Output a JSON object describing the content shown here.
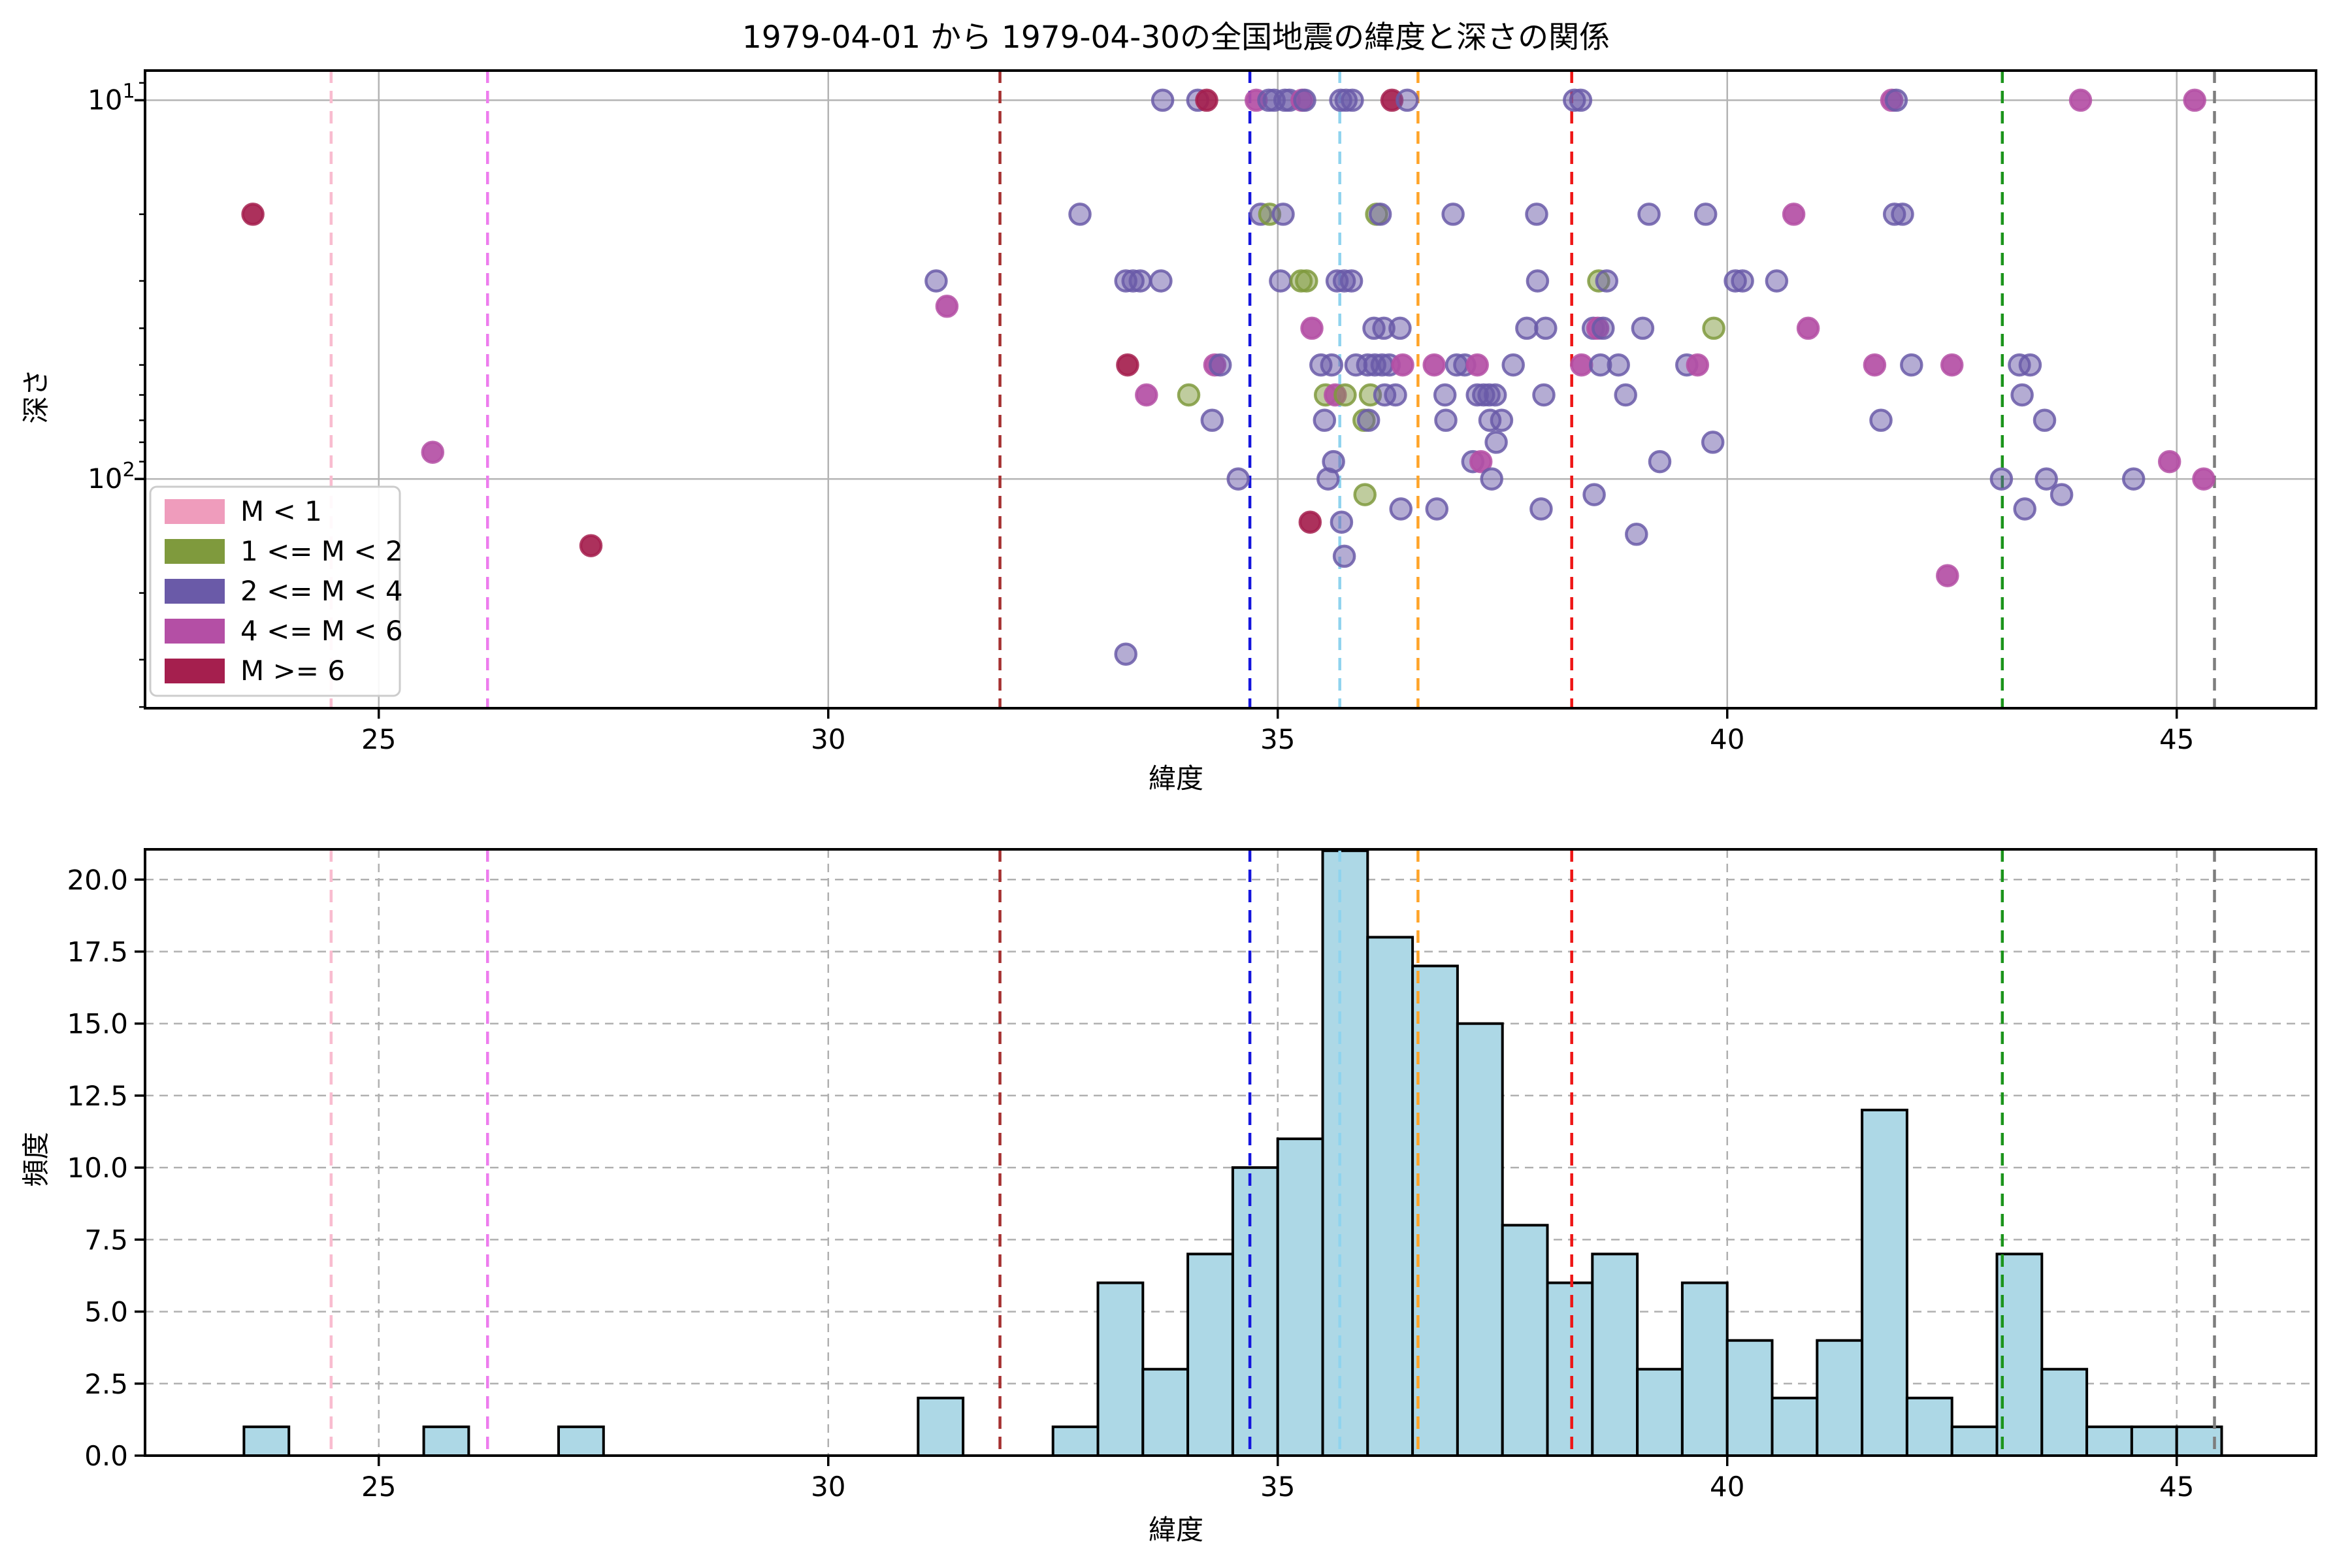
{
  "title": "1979-04-01 から 1979-04-30の全国地震の緯度と深さの関係",
  "chart_data": [
    {
      "type": "scatter",
      "title": "1979-04-01 から 1979-04-30の全国地震の緯度と深さの関係",
      "xlabel": "緯度",
      "ylabel": "深さ",
      "x_axis": {
        "ticks": [
          25,
          30,
          35,
          40,
          45
        ],
        "lim": [
          22.4,
          46.55
        ]
      },
      "y_axis": {
        "scale": "log",
        "inverted": true,
        "lim_depth_km": [
          8.35,
          403
        ],
        "tick_labels": [
          "10^1",
          "10^2"
        ],
        "tick_values": [
          10,
          100
        ],
        "minor_ticks": [
          9,
          20,
          30,
          40,
          50,
          60,
          70,
          80,
          90,
          200,
          300,
          400
        ]
      },
      "grid": "solid-major",
      "legend": {
        "position": "lower-left",
        "entries": [
          {
            "label": "M < 1",
            "color": "#ef9cbc"
          },
          {
            "label": "1 <= M < 2",
            "color": "#7f9a3d"
          },
          {
            "label": "2 <= M < 4",
            "color": "#6a5aa8"
          },
          {
            "label": "4 <= M < 6",
            "color": "#b44fa5"
          },
          {
            "label": "M >= 6",
            "color": "#a51f4e"
          }
        ]
      },
      "reference_lines_lat": [
        {
          "lat": 24.47,
          "color": "#f9bccf"
        },
        {
          "lat": 26.21,
          "color": "#ee7dee"
        },
        {
          "lat": 31.91,
          "color": "#a53030"
        },
        {
          "lat": 34.69,
          "color": "#1515dd"
        },
        {
          "lat": 35.69,
          "color": "#8fd3ee"
        },
        {
          "lat": 36.56,
          "color": "#ffa428"
        },
        {
          "lat": 38.27,
          "color": "#ee1515"
        },
        {
          "lat": 43.06,
          "color": "#1b941b"
        },
        {
          "lat": 45.42,
          "color": "#7d7d7d"
        }
      ],
      "point_classes": [
        "M < 1",
        "1 <= M < 2",
        "2 <= M < 4",
        "4 <= M < 6",
        "M >= 6"
      ],
      "points_lat_depth_class": [
        [
          33.72,
          10,
          2
        ],
        [
          34.11,
          10,
          2
        ],
        [
          34.21,
          10,
          4
        ],
        [
          34.76,
          10,
          3
        ],
        [
          34.9,
          10,
          2
        ],
        [
          34.96,
          10,
          2
        ],
        [
          35.08,
          10,
          2
        ],
        [
          35.13,
          10,
          2
        ],
        [
          35.27,
          10,
          3
        ],
        [
          35.3,
          10,
          2
        ],
        [
          35.7,
          10,
          2
        ],
        [
          35.76,
          10,
          2
        ],
        [
          35.83,
          10,
          2
        ],
        [
          36.27,
          10,
          4
        ],
        [
          36.44,
          10,
          2
        ],
        [
          38.3,
          10,
          2
        ],
        [
          38.37,
          10,
          2
        ],
        [
          41.83,
          10,
          3
        ],
        [
          41.88,
          10,
          2
        ],
        [
          43.93,
          10,
          3
        ],
        [
          45.2,
          10,
          3
        ],
        [
          23.6,
          20,
          4
        ],
        [
          32.8,
          20,
          2
        ],
        [
          34.81,
          20,
          2
        ],
        [
          34.91,
          20,
          1
        ],
        [
          35.06,
          20,
          2
        ],
        [
          36.1,
          20,
          1
        ],
        [
          36.14,
          20,
          2
        ],
        [
          36.95,
          20,
          2
        ],
        [
          37.88,
          20,
          2
        ],
        [
          39.13,
          20,
          2
        ],
        [
          39.76,
          20,
          2
        ],
        [
          40.74,
          20,
          3
        ],
        [
          41.86,
          20,
          2
        ],
        [
          41.95,
          20,
          2
        ],
        [
          31.2,
          30,
          2
        ],
        [
          33.31,
          30,
          2
        ],
        [
          33.39,
          30,
          2
        ],
        [
          33.47,
          30,
          2
        ],
        [
          33.7,
          30,
          2
        ],
        [
          35.03,
          30,
          2
        ],
        [
          35.26,
          30,
          1
        ],
        [
          35.32,
          30,
          1
        ],
        [
          35.66,
          30,
          2
        ],
        [
          35.74,
          30,
          2
        ],
        [
          35.82,
          30,
          2
        ],
        [
          37.89,
          30,
          2
        ],
        [
          38.57,
          30,
          1
        ],
        [
          38.66,
          30,
          2
        ],
        [
          40.09,
          30,
          2
        ],
        [
          40.17,
          30,
          2
        ],
        [
          40.55,
          30,
          2
        ],
        [
          31.32,
          35,
          3
        ],
        [
          35.38,
          40,
          3
        ],
        [
          36.07,
          40,
          2
        ],
        [
          36.18,
          40,
          2
        ],
        [
          36.36,
          40,
          2
        ],
        [
          37.77,
          40,
          2
        ],
        [
          37.98,
          40,
          2
        ],
        [
          38.51,
          40,
          2
        ],
        [
          38.56,
          40,
          3
        ],
        [
          38.62,
          40,
          2
        ],
        [
          39.06,
          40,
          2
        ],
        [
          39.85,
          40,
          1
        ],
        [
          40.9,
          40,
          3
        ],
        [
          33.33,
          50,
          4
        ],
        [
          34.3,
          50,
          3
        ],
        [
          34.36,
          50,
          2
        ],
        [
          35.48,
          50,
          2
        ],
        [
          35.6,
          50,
          2
        ],
        [
          35.87,
          50,
          2
        ],
        [
          36.0,
          50,
          2
        ],
        [
          36.08,
          50,
          2
        ],
        [
          36.16,
          50,
          2
        ],
        [
          36.24,
          50,
          2
        ],
        [
          36.39,
          50,
          3
        ],
        [
          36.74,
          50,
          3
        ],
        [
          36.99,
          50,
          2
        ],
        [
          37.08,
          50,
          2
        ],
        [
          37.22,
          50,
          3
        ],
        [
          37.62,
          50,
          2
        ],
        [
          38.38,
          50,
          3
        ],
        [
          38.59,
          50,
          2
        ],
        [
          38.79,
          50,
          2
        ],
        [
          39.55,
          50,
          2
        ],
        [
          39.67,
          50,
          3
        ],
        [
          41.64,
          50,
          3
        ],
        [
          42.05,
          50,
          2
        ],
        [
          42.5,
          50,
          3
        ],
        [
          43.25,
          50,
          2
        ],
        [
          43.37,
          50,
          2
        ],
        [
          33.54,
          60,
          3
        ],
        [
          34.01,
          60,
          1
        ],
        [
          35.53,
          60,
          1
        ],
        [
          35.64,
          60,
          3
        ],
        [
          35.75,
          60,
          1
        ],
        [
          36.03,
          60,
          1
        ],
        [
          36.19,
          60,
          2
        ],
        [
          36.31,
          60,
          2
        ],
        [
          36.86,
          60,
          2
        ],
        [
          37.22,
          60,
          2
        ],
        [
          37.29,
          60,
          2
        ],
        [
          37.35,
          60,
          2
        ],
        [
          37.42,
          60,
          2
        ],
        [
          37.96,
          60,
          2
        ],
        [
          38.87,
          60,
          2
        ],
        [
          43.28,
          60,
          2
        ],
        [
          34.27,
          70,
          2
        ],
        [
          35.52,
          70,
          2
        ],
        [
          35.96,
          70,
          1
        ],
        [
          36.01,
          70,
          2
        ],
        [
          36.87,
          70,
          2
        ],
        [
          37.36,
          70,
          2
        ],
        [
          37.49,
          70,
          2
        ],
        [
          41.71,
          70,
          2
        ],
        [
          43.53,
          70,
          2
        ],
        [
          37.43,
          80,
          2
        ],
        [
          39.84,
          80,
          2
        ],
        [
          25.6,
          85,
          3
        ],
        [
          35.62,
          90,
          2
        ],
        [
          37.17,
          90,
          2
        ],
        [
          37.26,
          90,
          3
        ],
        [
          39.25,
          90,
          2
        ],
        [
          44.92,
          90,
          3
        ],
        [
          34.56,
          100,
          2
        ],
        [
          35.56,
          100,
          2
        ],
        [
          37.38,
          100,
          2
        ],
        [
          43.05,
          100,
          2
        ],
        [
          43.55,
          100,
          2
        ],
        [
          44.52,
          100,
          2
        ],
        [
          45.3,
          100,
          3
        ],
        [
          35.97,
          110,
          1
        ],
        [
          38.52,
          110,
          2
        ],
        [
          43.72,
          110,
          2
        ],
        [
          36.37,
          120,
          2
        ],
        [
          36.77,
          120,
          2
        ],
        [
          37.93,
          120,
          2
        ],
        [
          43.31,
          120,
          2
        ],
        [
          35.36,
          130,
          4
        ],
        [
          35.71,
          130,
          2
        ],
        [
          38.99,
          140,
          2
        ],
        [
          27.36,
          150,
          4
        ],
        [
          35.74,
          160,
          2
        ],
        [
          42.45,
          180,
          3
        ],
        [
          33.31,
          290,
          2
        ]
      ]
    },
    {
      "type": "bar",
      "xlabel": "緯度",
      "ylabel": "頻度",
      "x_axis": {
        "ticks": [
          25,
          30,
          35,
          40,
          45
        ],
        "lim": [
          22.4,
          46.55
        ]
      },
      "y_axis": {
        "ticks": [
          0.0,
          2.5,
          5.0,
          7.5,
          10.0,
          12.5,
          15.0,
          17.5,
          20.0
        ],
        "lim": [
          0,
          21.05
        ]
      },
      "grid": "dashed-both",
      "bar_color": "#add8e6",
      "bar_edge_color": "#000000",
      "bin_width": 0.5,
      "bin_starts": [
        23.5,
        25.5,
        27.0,
        31.0,
        32.5,
        33.0,
        33.5,
        34.0,
        34.5,
        35.0,
        35.5,
        36.0,
        36.5,
        37.0,
        37.5,
        38.0,
        38.5,
        39.0,
        39.5,
        40.0,
        40.5,
        41.0,
        41.5,
        42.0,
        42.5,
        43.0,
        43.5,
        44.0,
        44.5,
        45.0
      ],
      "counts": [
        1,
        1,
        1,
        2,
        1,
        6,
        3,
        7,
        10,
        11,
        21,
        18,
        17,
        15,
        8,
        6,
        7,
        3,
        6,
        4,
        2,
        4,
        12,
        2,
        1,
        7,
        3,
        1,
        1,
        1
      ],
      "reference_lines_lat": [
        {
          "lat": 24.47,
          "color": "#f9bccf"
        },
        {
          "lat": 26.21,
          "color": "#ee7dee"
        },
        {
          "lat": 31.91,
          "color": "#a53030"
        },
        {
          "lat": 34.69,
          "color": "#1515dd"
        },
        {
          "lat": 35.69,
          "color": "#8fd3ee"
        },
        {
          "lat": 36.56,
          "color": "#ffa428"
        },
        {
          "lat": 38.27,
          "color": "#ee1515"
        },
        {
          "lat": 43.06,
          "color": "#1b941b"
        },
        {
          "lat": 45.42,
          "color": "#7d7d7d"
        }
      ]
    }
  ]
}
